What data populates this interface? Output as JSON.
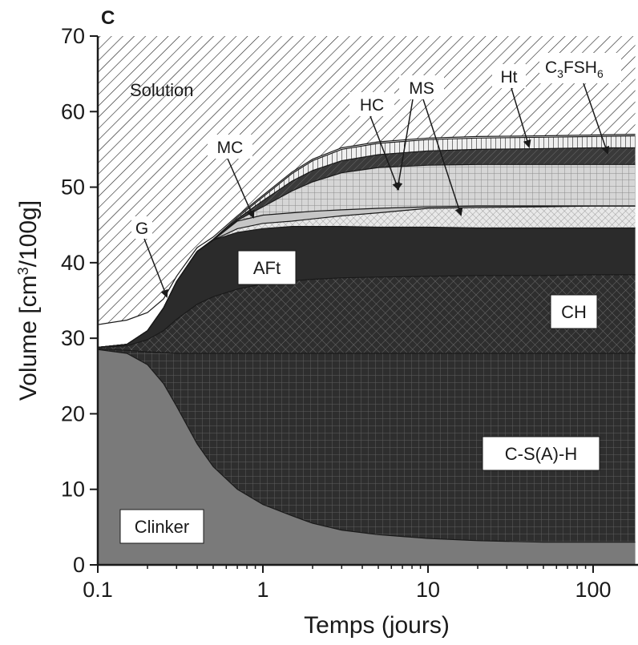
{
  "chart_data": {
    "type": "area",
    "panel_label": "C",
    "xlabel": "Temps (jours)",
    "ylabel": "Volume [cm³/100g]",
    "xscale": "log",
    "xlim": [
      0.1,
      180
    ],
    "ylim": [
      0,
      70
    ],
    "x_ticks": [
      0.1,
      1,
      10,
      100
    ],
    "x_tick_labels": [
      "0.1",
      "1",
      "10",
      "100"
    ],
    "y_ticks": [
      0,
      10,
      20,
      30,
      40,
      50,
      60,
      70
    ],
    "y_tick_labels": [
      "0",
      "10",
      "20",
      "30",
      "40",
      "50",
      "60",
      "70"
    ],
    "x": [
      0.1,
      0.15,
      0.2,
      0.25,
      0.3,
      0.4,
      0.5,
      0.7,
      1,
      1.5,
      2,
      3,
      5,
      10,
      20,
      50,
      100,
      180
    ],
    "boundaries": {
      "clinker_top": [
        28.5,
        28.0,
        26.5,
        24.0,
        21.0,
        16.0,
        13.0,
        10.0,
        8.0,
        6.5,
        5.5,
        4.6,
        4.0,
        3.5,
        3.2,
        3.0,
        3.0,
        3.0
      ],
      "csah_top": [
        28.6,
        28.4,
        28.2,
        28.1,
        28.0,
        28.0,
        28.0,
        28.0,
        28.0,
        28.0,
        28.0,
        28.0,
        28.0,
        28.0,
        28.0,
        28.0,
        28.0,
        28.0
      ],
      "ch_top": [
        28.8,
        29.0,
        29.8,
        31.0,
        32.5,
        34.5,
        35.5,
        36.5,
        37.2,
        37.6,
        37.8,
        38.0,
        38.1,
        38.2,
        38.3,
        38.3,
        38.4,
        38.4
      ],
      "aft_top": [
        28.8,
        29.2,
        31.0,
        34.0,
        37.5,
        41.5,
        43.0,
        44.0,
        44.5,
        44.8,
        44.8,
        44.8,
        44.7,
        44.7,
        44.6,
        44.6,
        44.6,
        44.6
      ],
      "mc_top": [
        28.8,
        29.2,
        31.0,
        34.0,
        37.5,
        41.5,
        43.0,
        44.5,
        45.2,
        45.5,
        45.8,
        46.2,
        46.6,
        47.2,
        47.3,
        47.4,
        47.5,
        47.5
      ],
      "ms_top": [
        28.8,
        29.2,
        31.0,
        34.0,
        37.5,
        41.5,
        43.0,
        45.5,
        46.3,
        46.6,
        46.8,
        47.0,
        47.2,
        47.4,
        47.5,
        47.5,
        47.5,
        47.5
      ],
      "hc_top": [
        28.8,
        29.2,
        31.0,
        34.0,
        37.5,
        41.5,
        43.0,
        45.6,
        47.4,
        49.5,
        50.7,
        51.9,
        52.6,
        52.9,
        53.0,
        53.0,
        53.0,
        53.0
      ],
      "ht_top": [
        28.8,
        29.2,
        31.0,
        34.0,
        37.5,
        41.5,
        43.0,
        45.8,
        48.2,
        50.8,
        52.2,
        53.5,
        54.3,
        54.8,
        55.0,
        55.1,
        55.2,
        55.2
      ],
      "c3fsh6_top": [
        28.8,
        29.2,
        31.0,
        34.0,
        37.5,
        41.5,
        43.1,
        46.0,
        48.7,
        51.8,
        53.5,
        55.0,
        55.8,
        56.3,
        56.5,
        56.6,
        56.7,
        56.8
      ],
      "gypsum_top": [
        31.8,
        32.4,
        33.4,
        35.2,
        38.2,
        42.0,
        43.4,
        46.2,
        48.9,
        52.0,
        53.7,
        55.2,
        56.0,
        56.5,
        56.7,
        56.8,
        56.9,
        57.0
      ],
      "solution_top": [
        70,
        70,
        70,
        70,
        70,
        70,
        70,
        70,
        70,
        70,
        70,
        70,
        70,
        70,
        70,
        70,
        70,
        70
      ]
    },
    "series": [
      {
        "name": "Clinker",
        "from": "zero",
        "to": "clinker_top",
        "style": "solid-mid-gray"
      },
      {
        "name": "C-S(A)-H",
        "from": "clinker_top",
        "to": "csah_top",
        "style": "dark-square-grid"
      },
      {
        "name": "CH",
        "from": "csah_top",
        "to": "ch_top",
        "style": "dark-diagonal-crosshatch"
      },
      {
        "name": "AFt",
        "from": "ch_top",
        "to": "aft_top",
        "style": "solid-dark"
      },
      {
        "name": "MC",
        "from": "aft_top",
        "to": "mc_top",
        "style": "light-crosshatch"
      },
      {
        "name": "MS",
        "from": "mc_top",
        "to": "ms_top",
        "style": "light-gray-solid"
      },
      {
        "name": "HC",
        "from": "ms_top",
        "to": "hc_top",
        "style": "light-square-grid"
      },
      {
        "name": "Ht",
        "from": "hc_top",
        "to": "ht_top",
        "style": "dark-hatched"
      },
      {
        "name": "C3FSH6",
        "from": "ht_top",
        "to": "c3fsh6_top",
        "style": "vertical-lines"
      },
      {
        "name": "G",
        "from": "c3fsh6_top",
        "to": "gypsum_top",
        "style": "white"
      },
      {
        "name": "Solution",
        "from": "gypsum_top",
        "to": "solution_top",
        "style": "diagonal-hatch"
      }
    ],
    "labels": {
      "solution": "Solution",
      "clinker": "Clinker",
      "csah": "C-S(A)-H",
      "ch": "CH",
      "aft": "AFt",
      "g": "G",
      "mc": "MC",
      "hc": "HC",
      "ms": "MS",
      "ht": "Ht",
      "c3fsh6_base1": "C",
      "c3fsh6_sub3": "3",
      "c3fsh6_base2": "FSH",
      "c3fsh6_sub6": "6"
    },
    "colors": {
      "clinker": "#7a7a7a",
      "dark_phase": "#2b2b2b",
      "grid_line": "#5a5a5a",
      "light_gray": "#c6c6c6",
      "light_grid_bg": "#d4d4d4",
      "hatch": "#1a1a1a",
      "axis": "#1a1a1a"
    }
  }
}
